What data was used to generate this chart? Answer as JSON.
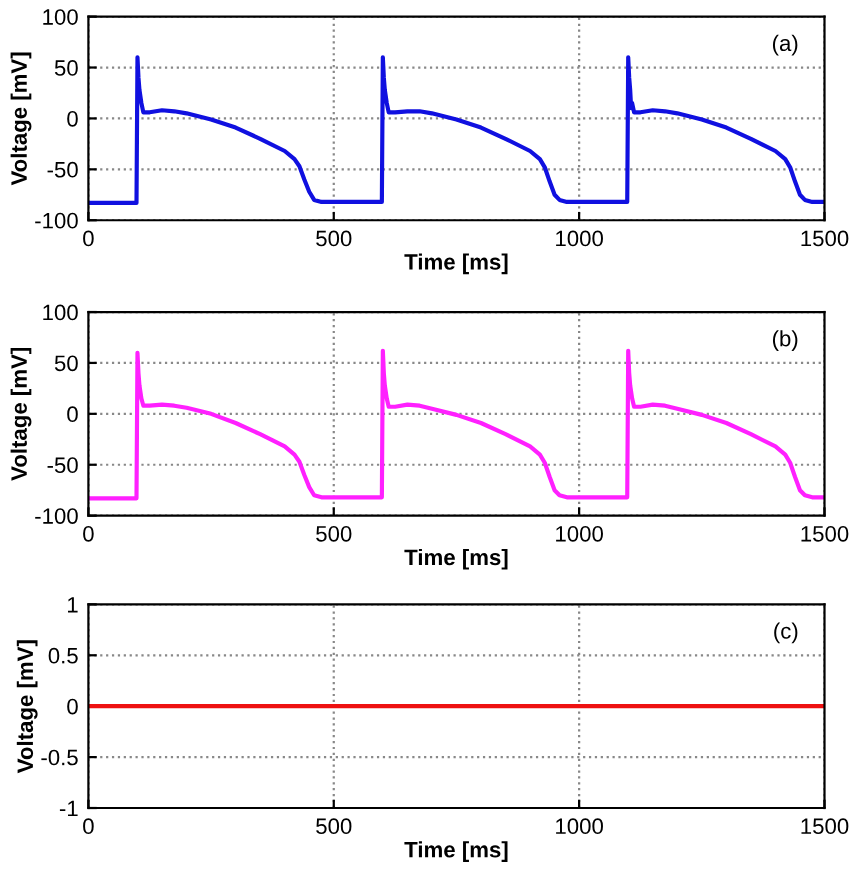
{
  "chart_data": [
    {
      "type": "line",
      "xlabel": "Time [ms]",
      "ylabel": "Voltage [mV]",
      "annotations": [
        "(a)"
      ],
      "xlim": [
        0,
        1500
      ],
      "ylim": [
        -100,
        100
      ],
      "xticks": [
        0,
        500,
        1000,
        1500
      ],
      "yticks": [
        -100,
        -50,
        0,
        50,
        100
      ],
      "grid": true,
      "series": [
        {
          "color": "#1010e0",
          "x": [
            0,
            98,
            100,
            102,
            104,
            108,
            112,
            125,
            150,
            175,
            200,
            250,
            300,
            350,
            400,
            420,
            430,
            440,
            450,
            460,
            475,
            598,
            600,
            602,
            604,
            608,
            612,
            625,
            650,
            675,
            700,
            750,
            800,
            850,
            900,
            920,
            930,
            940,
            950,
            960,
            975,
            1098,
            1100,
            1102,
            1104,
            1106,
            1108,
            1112,
            1125,
            1150,
            1175,
            1200,
            1250,
            1300,
            1350,
            1400,
            1420,
            1430,
            1440,
            1450,
            1460,
            1475,
            1500
          ],
          "values": [
            -83,
            -83,
            60,
            40,
            28,
            15,
            6,
            6,
            8,
            7,
            5,
            -1,
            -9,
            -20,
            -32,
            -40,
            -47,
            -60,
            -72,
            -80,
            -82,
            -82,
            60,
            40,
            28,
            15,
            6,
            6,
            7,
            7,
            5,
            -1,
            -9,
            -20,
            -32,
            -40,
            -48,
            -62,
            -75,
            -80,
            -82,
            -82,
            60,
            40,
            28,
            10,
            15,
            6,
            6,
            8,
            7,
            5,
            -1,
            -9,
            -20,
            -32,
            -40,
            -48,
            -62,
            -75,
            -80,
            -82,
            -82
          ]
        }
      ]
    },
    {
      "type": "line",
      "xlabel": "Time [ms]",
      "ylabel": "Voltage [mV]",
      "annotations": [
        "(b)"
      ],
      "xlim": [
        0,
        1500
      ],
      "ylim": [
        -100,
        100
      ],
      "xticks": [
        0,
        500,
        1000,
        1500
      ],
      "yticks": [
        -100,
        -50,
        0,
        50,
        100
      ],
      "grid": true,
      "series": [
        {
          "color": "#ff20ff",
          "x": [
            0,
            98,
            100,
            102,
            104,
            108,
            112,
            125,
            150,
            175,
            200,
            250,
            300,
            350,
            400,
            420,
            430,
            440,
            450,
            460,
            475,
            598,
            600,
            602,
            604,
            608,
            612,
            625,
            650,
            675,
            700,
            750,
            800,
            850,
            900,
            920,
            930,
            940,
            950,
            960,
            975,
            1098,
            1100,
            1102,
            1104,
            1108,
            1112,
            1125,
            1150,
            1175,
            1200,
            1250,
            1300,
            1350,
            1400,
            1420,
            1430,
            1440,
            1450,
            1460,
            1475,
            1500
          ],
          "values": [
            -83,
            -83,
            60,
            40,
            28,
            15,
            8,
            8,
            9,
            8,
            6,
            0,
            -9,
            -20,
            -32,
            -40,
            -47,
            -60,
            -72,
            -80,
            -82,
            -82,
            62,
            40,
            28,
            15,
            7,
            7,
            9,
            8,
            5,
            -1,
            -9,
            -20,
            -32,
            -40,
            -48,
            -62,
            -75,
            -80,
            -82,
            -82,
            62,
            40,
            28,
            15,
            7,
            7,
            9,
            8,
            5,
            -1,
            -9,
            -20,
            -32,
            -40,
            -48,
            -62,
            -75,
            -80,
            -82,
            -82
          ]
        }
      ]
    },
    {
      "type": "line",
      "xlabel": "Time [ms]",
      "ylabel": "Voltage [mV]",
      "annotations": [
        "(c)"
      ],
      "xlim": [
        0,
        1500
      ],
      "ylim": [
        -1,
        1
      ],
      "xticks": [
        0,
        500,
        1000,
        1500
      ],
      "yticks": [
        -1,
        -0.5,
        0,
        0.5,
        1
      ],
      "grid": true,
      "series": [
        {
          "color": "#ee1111",
          "x": [
            0,
            1500
          ],
          "values": [
            0,
            0
          ]
        }
      ]
    }
  ]
}
